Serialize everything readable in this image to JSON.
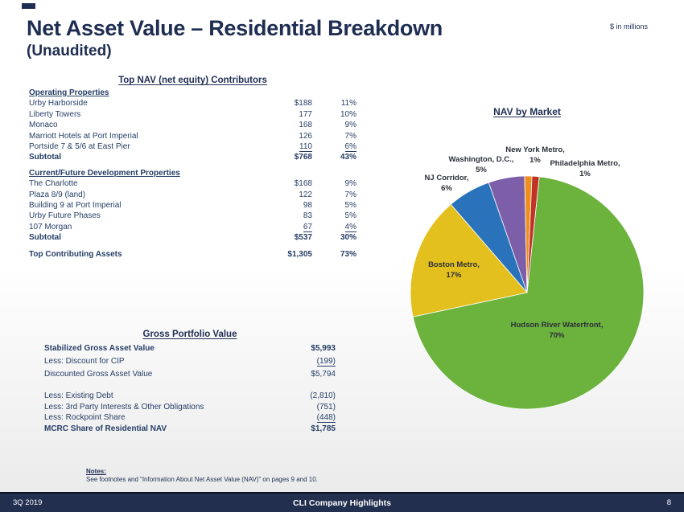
{
  "slide": {
    "title": "Net Asset Value – Residential Breakdown",
    "subtitle": "(Unaudited)",
    "units_note": "$ in millions"
  },
  "colors": {
    "navy": "#1E2D52",
    "footer_bg": "#222F4E"
  },
  "top_table": {
    "title": "Top NAV (net equity) Contributors",
    "sections": [
      {
        "header": "Operating Properties",
        "rows": [
          {
            "label": "Urby Harborside",
            "value": "$188",
            "pct": "11%"
          },
          {
            "label": "Liberty Towers",
            "value": "177",
            "pct": "10%"
          },
          {
            "label": "Monaco",
            "value": "168",
            "pct": "9%"
          },
          {
            "label": "Marriott Hotels at Port Imperial",
            "value": "126",
            "pct": "7%"
          },
          {
            "label": "Portside 7 & 5/6 at East Pier",
            "value": "110",
            "pct": "6%"
          }
        ],
        "subtotal": {
          "label": "Subtotal",
          "value": "$768",
          "pct": "43%"
        }
      },
      {
        "header": "Current/Future Development Properties",
        "rows": [
          {
            "label": "The Charlotte",
            "value": "$168",
            "pct": "9%"
          },
          {
            "label": "Plaza 8/9 (land)",
            "value": "122",
            "pct": "7%"
          },
          {
            "label": "Building 9 at Port Imperial",
            "value": "98",
            "pct": "5%"
          },
          {
            "label": "Urby Future Phases",
            "value": "83",
            "pct": "5%"
          },
          {
            "label": "107 Morgan",
            "value": "67",
            "pct": "4%"
          }
        ],
        "subtotal": {
          "label": "Subtotal",
          "value": "$537",
          "pct": "30%"
        }
      }
    ],
    "total": {
      "label": "Top Contributing Assets",
      "value": "$1,305",
      "pct": "73%"
    }
  },
  "gross_table": {
    "title": "Gross Portfolio Value",
    "rows": [
      {
        "label": "Stabilized Gross Asset Value",
        "value": "$5,993"
      },
      {
        "label": "Less: Discount for CIP",
        "value": "(199)"
      },
      {
        "label": "Discounted Gross Asset Value",
        "value": "$5,794"
      },
      {
        "label": "Less: Existing Debt",
        "value": "(2,810)"
      },
      {
        "label": "Less: 3rd Party Interests & Other Obligations",
        "value": "(751)"
      },
      {
        "label": "Less: Rockpoint Share",
        "value": "(448)"
      },
      {
        "label": "MCRC Share of Residential NAV",
        "value": "$1,785"
      }
    ]
  },
  "chart_data": {
    "type": "pie",
    "title": "NAV by Market",
    "start_angle_deg": 6,
    "legend": "none",
    "label_position": "mixed-inside-outside",
    "segments": [
      {
        "name": "Hudson River Waterfront",
        "value": 70,
        "color": "#6CB33E",
        "label_line1": "Hudson River Waterfront,",
        "label_line2": "70%"
      },
      {
        "name": "Boston Metro",
        "value": 17,
        "color": "#E3C01D",
        "label_line1": "Boston Metro,",
        "label_line2": "17%"
      },
      {
        "name": "NJ Corridor",
        "value": 6,
        "color": "#2A73BB",
        "label_line1": "NJ Corridor,",
        "label_line2": "6%"
      },
      {
        "name": "Washington, D.C.",
        "value": 5,
        "color": "#7C5FA8",
        "label_line1": "Washington, D.C.,",
        "label_line2": "5%"
      },
      {
        "name": "New York Metro",
        "value": 1,
        "color": "#EE8E1D",
        "label_line1": "New York Metro,",
        "label_line2": "1%"
      },
      {
        "name": "Philadelphia Metro",
        "value": 1,
        "color": "#C13227",
        "label_line1": "Philadelphia Metro,",
        "label_line2": "1%"
      }
    ]
  },
  "notes": {
    "heading": "Notes:",
    "text": "See footnotes and “Information About Net Asset Value (NAV)” on pages 9 and 10."
  },
  "footer": {
    "left": "3Q 2019",
    "center": "CLI Company Highlights",
    "page": "8"
  }
}
